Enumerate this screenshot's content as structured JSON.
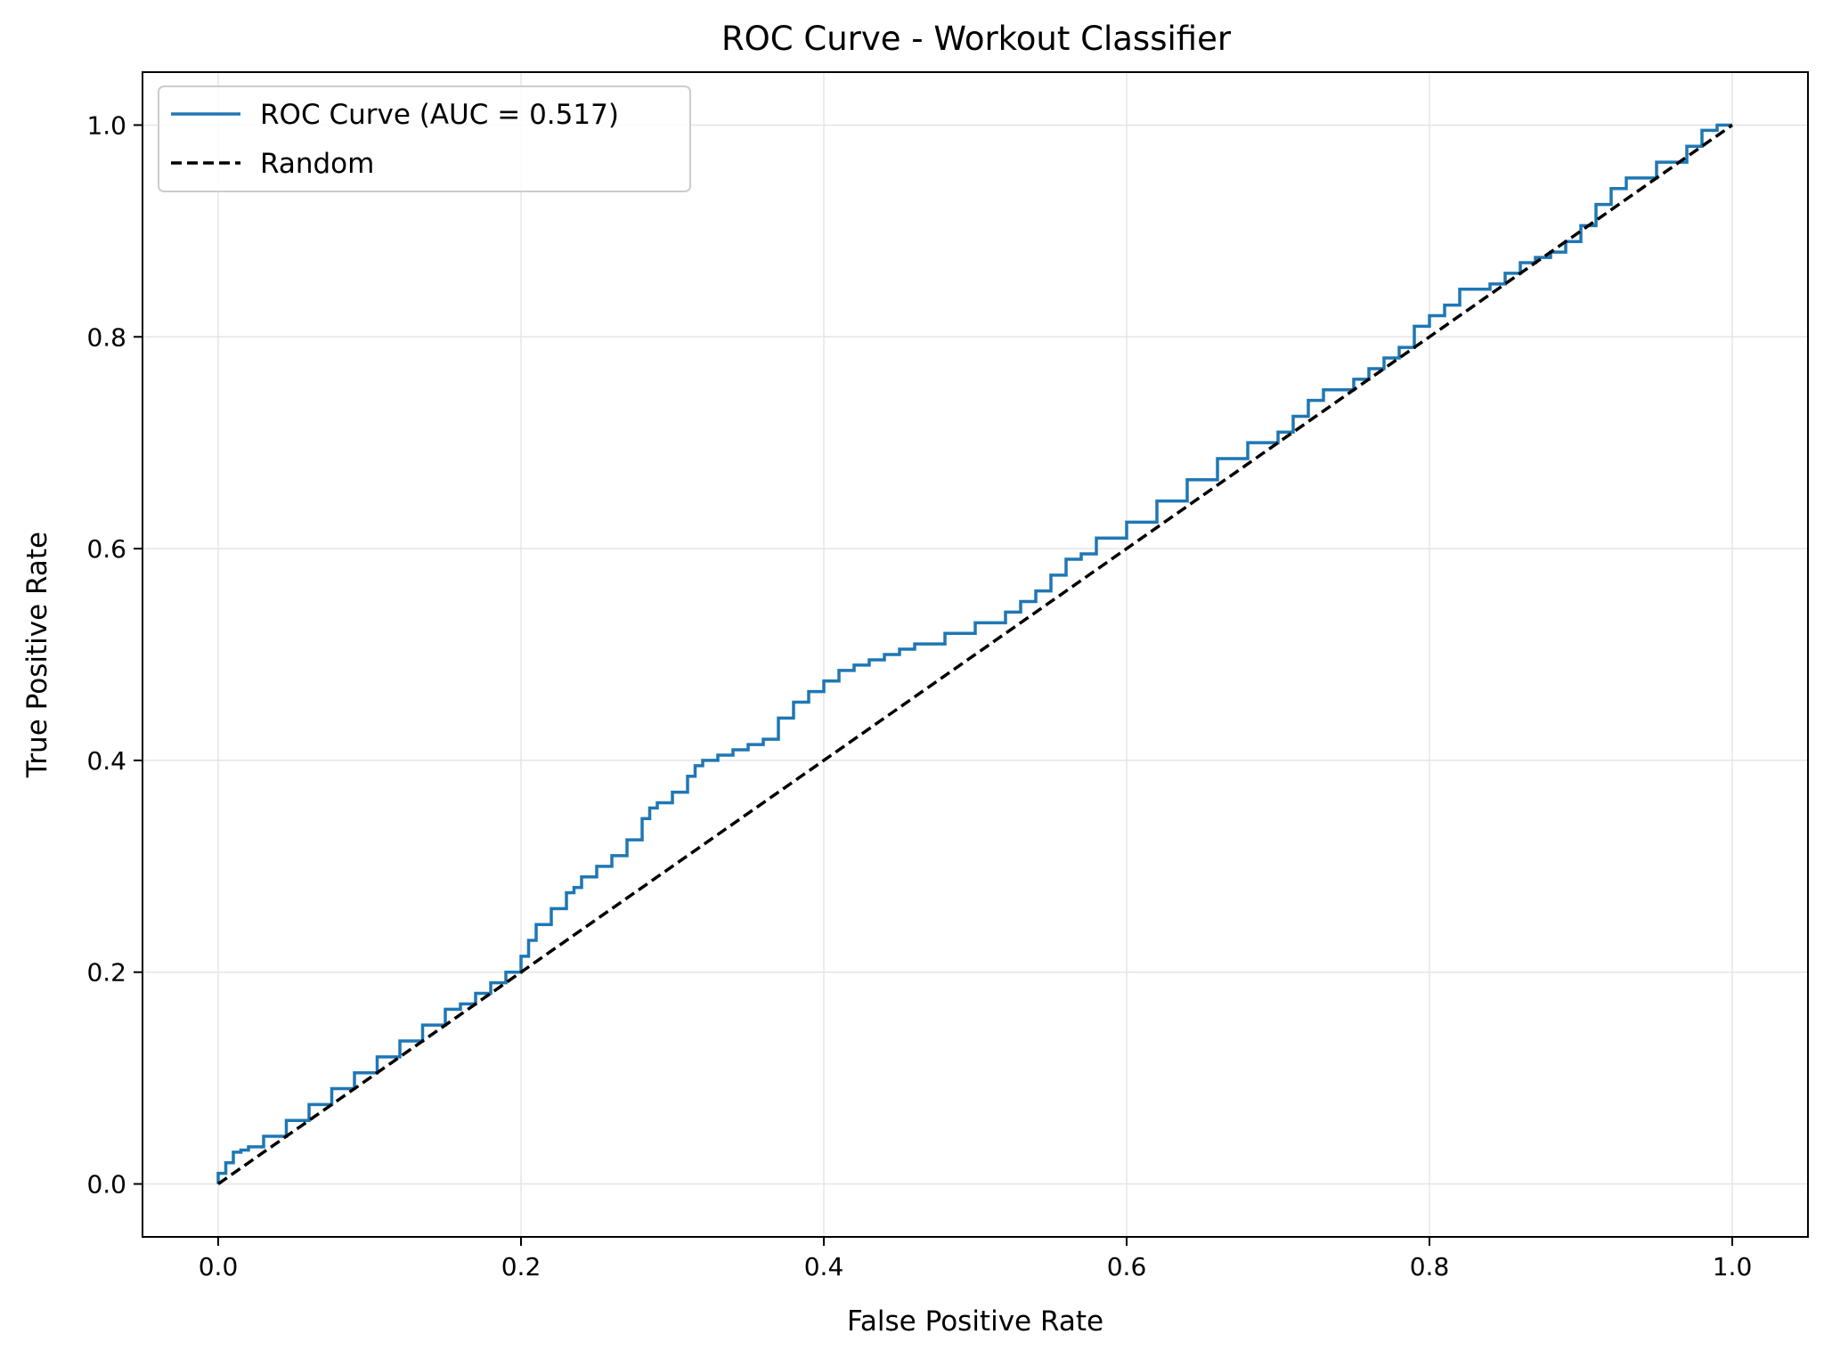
{
  "chart_data": {
    "type": "line",
    "title": "ROC Curve - Workout Classifier",
    "xlabel": "False Positive Rate",
    "ylabel": "True Positive Rate",
    "xlim": [
      -0.05,
      1.05
    ],
    "ylim": [
      -0.05,
      1.05
    ],
    "xticks": [
      0.0,
      0.2,
      0.4,
      0.6,
      0.8,
      1.0
    ],
    "xtick_labels": [
      "0.0",
      "0.2",
      "0.4",
      "0.6",
      "0.8",
      "1.0"
    ],
    "yticks": [
      0.0,
      0.2,
      0.4,
      0.6,
      0.8,
      1.0
    ],
    "ytick_labels": [
      "0.0",
      "0.2",
      "0.4",
      "0.6",
      "0.8",
      "1.0"
    ],
    "grid": true,
    "legend_position": "top-left",
    "series": [
      {
        "name": "ROC Curve (AUC = 0.517)",
        "style": "solid-step",
        "color": "#1f77b4",
        "x": [
          0.0,
          0.005,
          0.01,
          0.015,
          0.02,
          0.03,
          0.045,
          0.06,
          0.075,
          0.09,
          0.105,
          0.12,
          0.135,
          0.15,
          0.16,
          0.17,
          0.18,
          0.19,
          0.2,
          0.205,
          0.21,
          0.22,
          0.23,
          0.235,
          0.24,
          0.25,
          0.26,
          0.27,
          0.28,
          0.285,
          0.29,
          0.3,
          0.31,
          0.315,
          0.32,
          0.33,
          0.34,
          0.35,
          0.36,
          0.37,
          0.38,
          0.39,
          0.4,
          0.41,
          0.42,
          0.43,
          0.44,
          0.45,
          0.46,
          0.48,
          0.5,
          0.52,
          0.53,
          0.54,
          0.55,
          0.56,
          0.57,
          0.58,
          0.6,
          0.62,
          0.64,
          0.66,
          0.68,
          0.7,
          0.71,
          0.72,
          0.73,
          0.75,
          0.76,
          0.77,
          0.78,
          0.79,
          0.8,
          0.81,
          0.82,
          0.84,
          0.85,
          0.86,
          0.87,
          0.88,
          0.89,
          0.9,
          0.91,
          0.92,
          0.93,
          0.95,
          0.97,
          0.98,
          0.99,
          1.0
        ],
        "y": [
          0.0,
          0.01,
          0.02,
          0.03,
          0.032,
          0.035,
          0.045,
          0.06,
          0.075,
          0.09,
          0.105,
          0.12,
          0.135,
          0.15,
          0.165,
          0.17,
          0.18,
          0.19,
          0.2,
          0.215,
          0.23,
          0.245,
          0.26,
          0.275,
          0.28,
          0.29,
          0.3,
          0.31,
          0.325,
          0.345,
          0.355,
          0.36,
          0.37,
          0.385,
          0.395,
          0.4,
          0.405,
          0.41,
          0.415,
          0.42,
          0.44,
          0.455,
          0.465,
          0.475,
          0.485,
          0.49,
          0.495,
          0.5,
          0.505,
          0.51,
          0.52,
          0.53,
          0.54,
          0.55,
          0.56,
          0.575,
          0.59,
          0.595,
          0.61,
          0.625,
          0.645,
          0.665,
          0.685,
          0.7,
          0.71,
          0.725,
          0.74,
          0.75,
          0.76,
          0.77,
          0.78,
          0.79,
          0.81,
          0.82,
          0.83,
          0.845,
          0.85,
          0.86,
          0.87,
          0.875,
          0.88,
          0.89,
          0.905,
          0.925,
          0.94,
          0.95,
          0.965,
          0.98,
          0.995,
          1.0
        ]
      },
      {
        "name": "Random",
        "style": "dashed",
        "color": "#000000",
        "x": [
          0.0,
          1.0
        ],
        "y": [
          0.0,
          1.0
        ]
      }
    ]
  }
}
